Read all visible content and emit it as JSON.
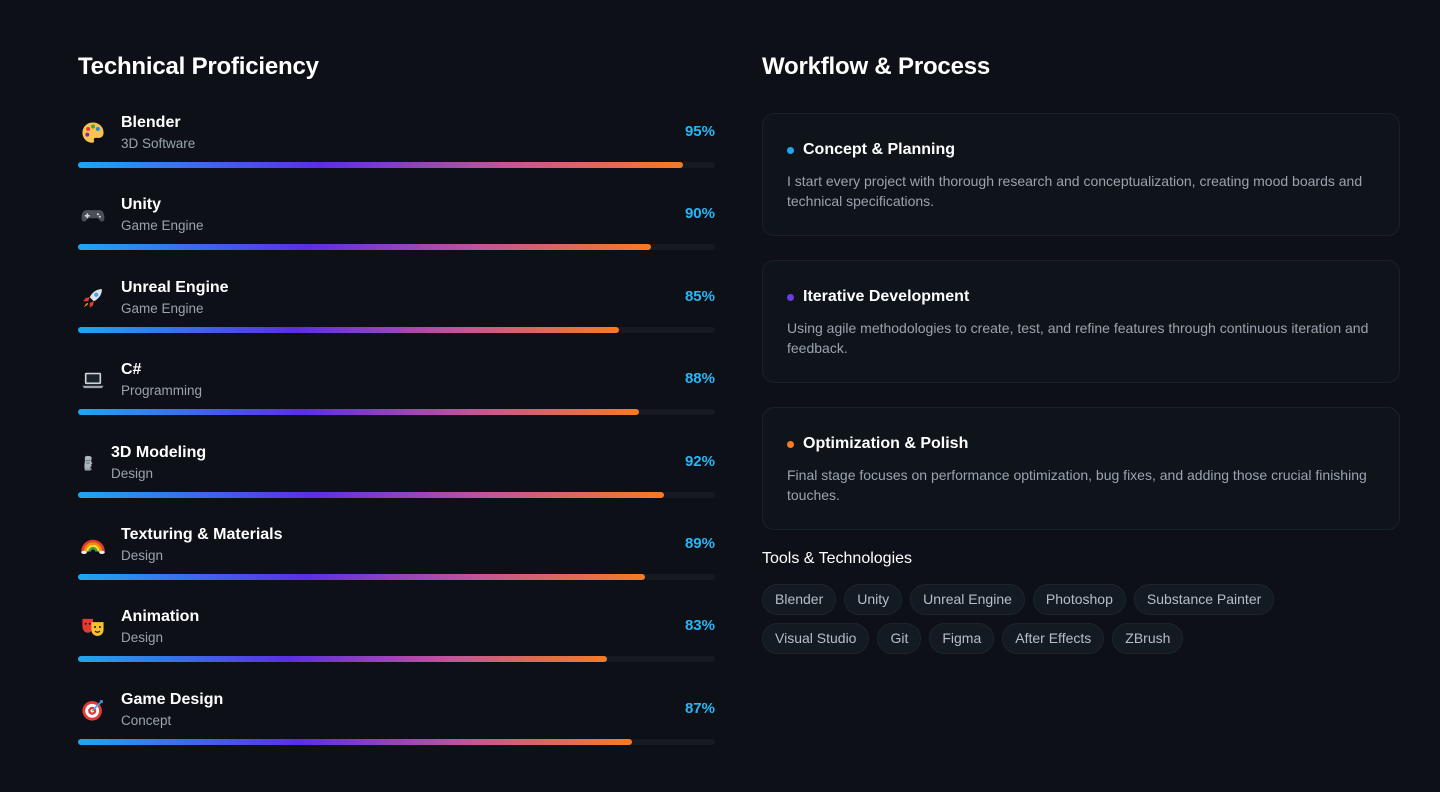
{
  "proficiency": {
    "title": "Technical Proficiency",
    "skills": [
      {
        "name": "Blender",
        "category": "3D Software",
        "percent_label": "95%",
        "level": 95,
        "icon": "palette-icon"
      },
      {
        "name": "Unity",
        "category": "Game Engine",
        "percent_label": "90%",
        "level": 90,
        "icon": "gamepad-icon"
      },
      {
        "name": "Unreal Engine",
        "category": "Game Engine",
        "percent_label": "85%",
        "level": 85,
        "icon": "rocket-icon"
      },
      {
        "name": "C#",
        "category": "Programming",
        "percent_label": "88%",
        "level": 88,
        "icon": "laptop-icon"
      },
      {
        "name": "3D Modeling",
        "category": "Design",
        "percent_label": "92%",
        "level": 92,
        "icon": "moai-icon"
      },
      {
        "name": "Texturing & Materials",
        "category": "Design",
        "percent_label": "89%",
        "level": 89,
        "icon": "rainbow-icon"
      },
      {
        "name": "Animation",
        "category": "Design",
        "percent_label": "83%",
        "level": 83,
        "icon": "theater-masks-icon"
      },
      {
        "name": "Game Design",
        "category": "Concept",
        "percent_label": "87%",
        "level": 87,
        "icon": "target-icon"
      }
    ]
  },
  "workflow": {
    "title": "Workflow & Process",
    "cards": [
      {
        "title": "Concept & Planning",
        "text": "I start every project with thorough research and conceptualization, creating mood boards and technical specifications.",
        "dot_color": "#1ea7f0"
      },
      {
        "title": "Iterative Development",
        "text": "Using agile methodologies to create, test, and refine features through continuous iteration and feedback.",
        "dot_color": "#6a3de8"
      },
      {
        "title": "Optimization & Polish",
        "text": "Final stage focuses on performance optimization, bug fixes, and adding those crucial finishing touches.",
        "dot_color": "#f77b22"
      }
    ]
  },
  "tools": {
    "title": "Tools & Technologies",
    "items": [
      "Blender",
      "Unity",
      "Unreal Engine",
      "Photoshop",
      "Substance Painter",
      "Visual Studio",
      "Git",
      "Figma",
      "After Effects",
      "ZBrush"
    ]
  },
  "colors": {
    "background": "#0d1117",
    "accent_blue": "#29b6f6",
    "bar_gradient": [
      "#1ea7f0",
      "#5b2ee6",
      "#c1549a",
      "#f77b22"
    ]
  }
}
